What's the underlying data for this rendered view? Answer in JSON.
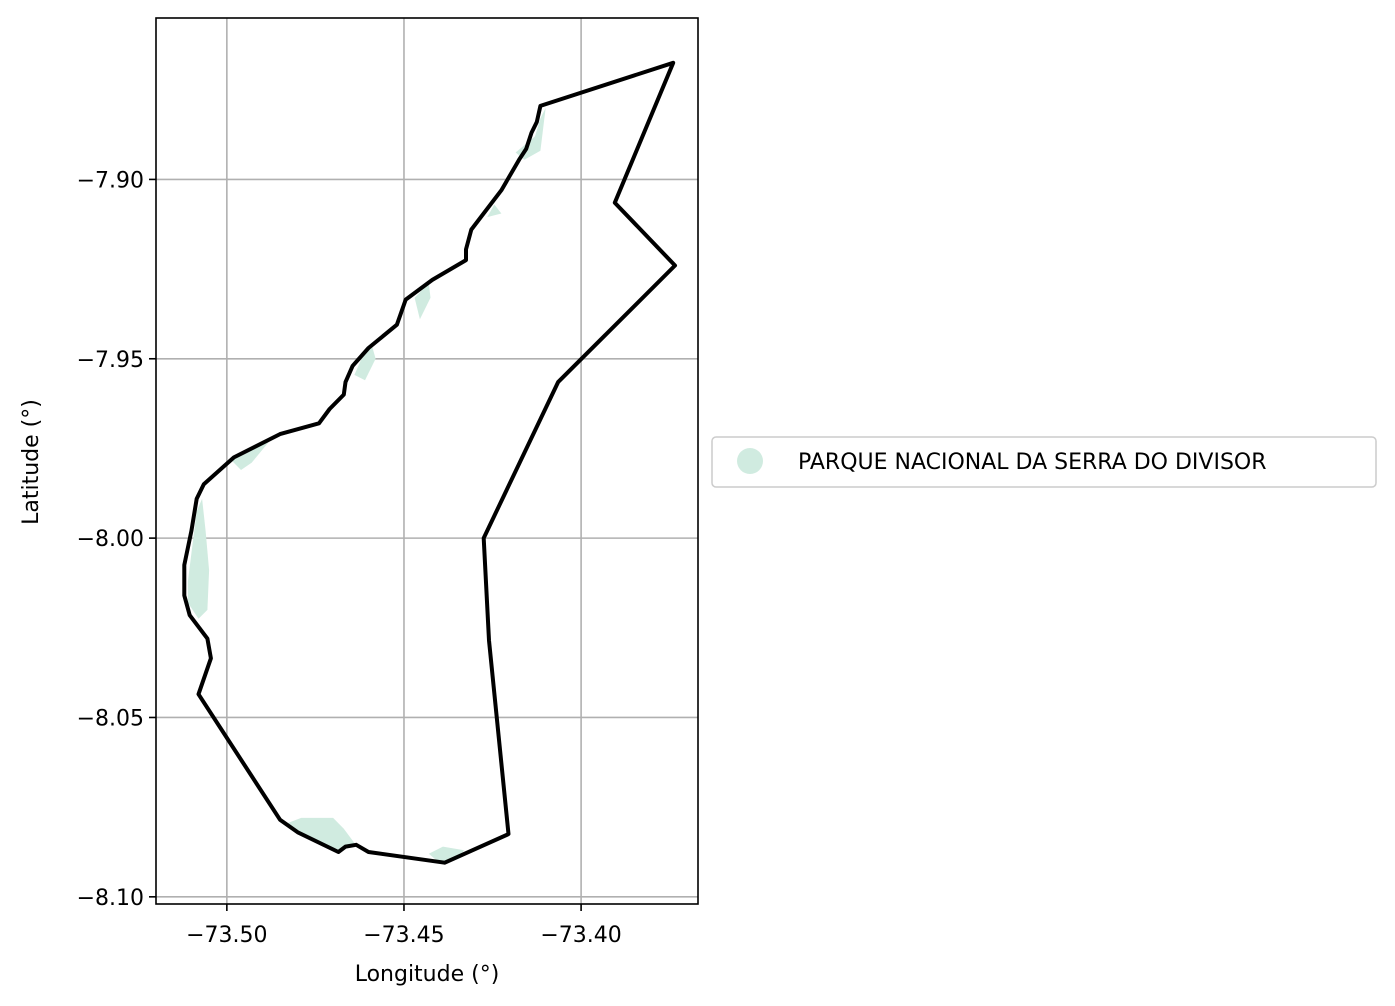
{
  "chart_data": {
    "type": "map",
    "xlabel": "Longitude (°)",
    "ylabel": "Latitude (°)",
    "xlim": [
      -73.52,
      -73.367
    ],
    "ylim": [
      -8.102,
      -7.855
    ],
    "xticks": [
      -73.5,
      -73.45,
      -73.4
    ],
    "xtick_labels": [
      "−73.50",
      "−73.45",
      "−73.40"
    ],
    "yticks": [
      -7.9,
      -7.95,
      -8.0,
      -8.05,
      -8.1
    ],
    "ytick_labels": [
      "−7.90",
      "−7.95",
      "−8.00",
      "−8.05",
      "−8.10"
    ],
    "grid": true,
    "legend_position": "right",
    "legend": [
      {
        "label": "PARQUE NACIONAL DA SERRA DO DIVISOR",
        "color": "#d0ebe0",
        "marker": "circle"
      }
    ],
    "boundary": {
      "color": "#000000",
      "points": [
        [
          -73.4115,
          -7.8795
        ],
        [
          -73.374,
          -7.8675
        ],
        [
          -73.3905,
          -7.9065
        ],
        [
          -73.3735,
          -7.924
        ],
        [
          -73.4065,
          -7.9565
        ],
        [
          -73.4275,
          -8.0
        ],
        [
          -73.426,
          -8.0285
        ],
        [
          -73.4205,
          -8.0825
        ],
        [
          -73.4385,
          -8.0905
        ],
        [
          -73.46,
          -8.0875
        ],
        [
          -73.4635,
          -8.0855
        ],
        [
          -73.4665,
          -8.086
        ],
        [
          -73.4685,
          -8.0875
        ],
        [
          -73.48,
          -8.082
        ],
        [
          -73.485,
          -8.0785
        ],
        [
          -73.508,
          -8.0435
        ],
        [
          -73.5045,
          -8.0335
        ],
        [
          -73.5055,
          -8.028
        ],
        [
          -73.5105,
          -8.0215
        ],
        [
          -73.512,
          -8.016
        ],
        [
          -73.512,
          -8.0075
        ],
        [
          -73.51,
          -7.998
        ],
        [
          -73.5085,
          -7.989
        ],
        [
          -73.5065,
          -7.985
        ],
        [
          -73.498,
          -7.9775
        ],
        [
          -73.485,
          -7.971
        ],
        [
          -73.474,
          -7.968
        ],
        [
          -73.471,
          -7.964
        ],
        [
          -73.467,
          -7.96
        ],
        [
          -73.4665,
          -7.9565
        ],
        [
          -73.4645,
          -7.952
        ],
        [
          -73.46,
          -7.947
        ],
        [
          -73.452,
          -7.9405
        ],
        [
          -73.4495,
          -7.9335
        ],
        [
          -73.442,
          -7.928
        ],
        [
          -73.4325,
          -7.9225
        ],
        [
          -73.4325,
          -7.9195
        ],
        [
          -73.431,
          -7.914
        ],
        [
          -73.4225,
          -7.903
        ],
        [
          -73.4175,
          -7.8945
        ],
        [
          -73.4155,
          -7.8915
        ],
        [
          -73.414,
          -7.887
        ],
        [
          -73.4125,
          -7.884
        ]
      ]
    },
    "park_fragments": {
      "label": "PARQUE NACIONAL DA SERRA DO DIVISOR",
      "color": "#d0ebe0",
      "fragments": [
        [
          [
            -73.511,
            -8.012
          ],
          [
            -73.5085,
            -7.9925
          ],
          [
            -73.507,
            -7.989
          ],
          [
            -73.506,
            -7.998
          ],
          [
            -73.505,
            -8.009
          ],
          [
            -73.5055,
            -8.02
          ],
          [
            -73.508,
            -8.0225
          ],
          [
            -73.511,
            -8.018
          ]
        ],
        [
          [
            -73.499,
            -7.978
          ],
          [
            -73.492,
            -7.974
          ],
          [
            -73.488,
            -7.973
          ],
          [
            -73.493,
            -7.979
          ],
          [
            -73.496,
            -7.981
          ]
        ],
        [
          [
            -73.462,
            -7.95
          ],
          [
            -73.459,
            -7.9465
          ],
          [
            -73.458,
            -7.95
          ],
          [
            -73.461,
            -7.956
          ],
          [
            -73.464,
            -7.9545
          ]
        ],
        [
          [
            -73.447,
            -7.933
          ],
          [
            -73.443,
            -7.929
          ],
          [
            -73.4425,
            -7.933
          ],
          [
            -73.4455,
            -7.939
          ]
        ],
        [
          [
            -73.4185,
            -7.8925
          ],
          [
            -73.413,
            -7.888
          ],
          [
            -73.4115,
            -7.883
          ],
          [
            -73.41,
            -7.88
          ],
          [
            -73.4115,
            -7.892
          ],
          [
            -73.416,
            -7.8945
          ]
        ],
        [
          [
            -73.483,
            -8.0795
          ],
          [
            -73.479,
            -8.078
          ],
          [
            -73.47,
            -8.078
          ],
          [
            -73.467,
            -8.081
          ],
          [
            -73.464,
            -8.085
          ],
          [
            -73.468,
            -8.087
          ],
          [
            -73.476,
            -8.084
          ]
        ],
        [
          [
            -73.443,
            -8.088
          ],
          [
            -73.439,
            -8.086
          ],
          [
            -73.433,
            -8.087
          ],
          [
            -73.435,
            -8.0895
          ],
          [
            -73.44,
            -8.0905
          ]
        ],
        [
          [
            -73.4265,
            -7.9105
          ],
          [
            -73.4245,
            -7.907
          ],
          [
            -73.4225,
            -7.9095
          ]
        ]
      ]
    }
  }
}
